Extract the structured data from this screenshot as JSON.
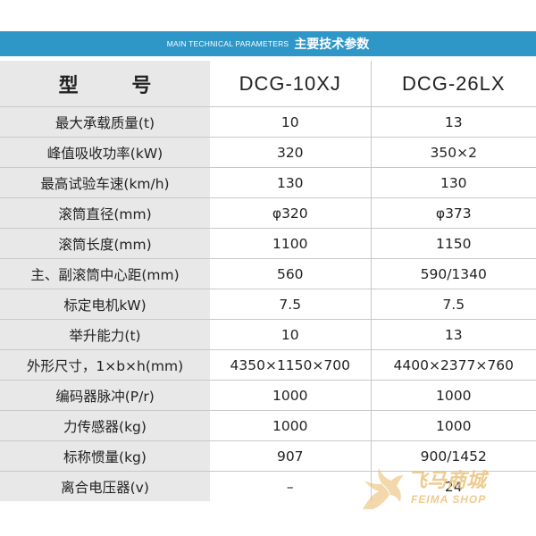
{
  "banner": {
    "en": "MAIN TECHNICAL PARAMETERS",
    "cn": "主要技术参数"
  },
  "header": {
    "param": "型 号",
    "model1": "DCG-10XJ",
    "model2": "DCG-26LX"
  },
  "rows": [
    {
      "param": "最大承载质量(t)",
      "v1": "10",
      "v2": "13"
    },
    {
      "param": "峰值吸收功率(kW)",
      "v1": "320",
      "v2": "350×2"
    },
    {
      "param": "最高试验车速(km/h)",
      "v1": "130",
      "v2": "130"
    },
    {
      "param": "滚筒直径(mm)",
      "v1": "φ320",
      "v2": "φ373"
    },
    {
      "param": "滚筒长度(mm)",
      "v1": "1100",
      "v2": "1150"
    },
    {
      "param": "主、副滚筒中心距(mm)",
      "v1": "560",
      "v2": "590/1340"
    },
    {
      "param": "标定电机kW)",
      "v1": "7.5",
      "v2": "7.5"
    },
    {
      "param": "举升能力(t)",
      "v1": "10",
      "v2": "13"
    },
    {
      "param": "外形尺寸，1×b×h(mm)",
      "v1": "4350×1150×700",
      "v2": "4400×2377×760"
    },
    {
      "param": "编码器脉冲(P/r)",
      "v1": "1000",
      "v2": "1000"
    },
    {
      "param": "力传感器(kg)",
      "v1": "1000",
      "v2": "1000"
    },
    {
      "param": "标称惯量(kg)",
      "v1": "907",
      "v2": "900/1452"
    },
    {
      "param": "离合电压器(v)",
      "v1": "–",
      "v2": "24"
    }
  ],
  "watermark": {
    "cn": "飞马商城",
    "en": "FEIMA SHOP",
    "icon": "pegasus-logo-icon",
    "color": "#ecc27c"
  },
  "colors": {
    "banner": "#2e97c8",
    "label_cell": "#e8e8e8",
    "grid": "#c9c9c9"
  }
}
